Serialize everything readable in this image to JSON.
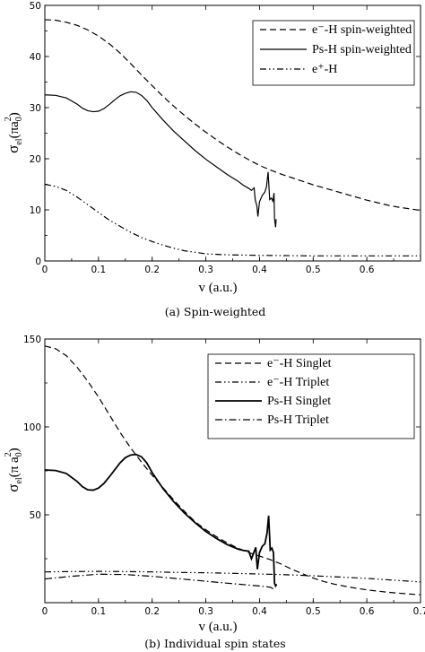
{
  "chart_data": [
    {
      "type": "line",
      "caption": "(a) Spin-weighted",
      "xlabel": "v  (a.u.)",
      "ylabel_main": "σ",
      "ylabel_sub": "el",
      "ylabel_rest": "(πa",
      "ylabel_sub2": "0",
      "ylabel_sup": "2",
      "ylabel_end": ")",
      "xlim": [
        0,
        0.7
      ],
      "ylim": [
        0,
        50
      ],
      "xticks": [
        "0",
        "0.1",
        "0.2",
        "0.3",
        "0.4",
        "0.5",
        "0.6"
      ],
      "yticks": [
        "0",
        "10",
        "20",
        "30",
        "40",
        "50"
      ],
      "legend": "top-right",
      "series": [
        {
          "name": "e⁻-H spin-weighted",
          "style": "dashed",
          "points": [
            [
              0,
              47.2
            ],
            [
              0.02,
              47.1
            ],
            [
              0.04,
              46.7
            ],
            [
              0.06,
              46.1
            ],
            [
              0.08,
              45.2
            ],
            [
              0.1,
              44.0
            ],
            [
              0.12,
              42.5
            ],
            [
              0.14,
              40.7
            ],
            [
              0.16,
              38.6
            ],
            [
              0.18,
              36.4
            ],
            [
              0.2,
              34.3
            ],
            [
              0.22,
              32.2
            ],
            [
              0.24,
              30.3
            ],
            [
              0.26,
              28.5
            ],
            [
              0.28,
              26.8
            ],
            [
              0.3,
              25.2
            ],
            [
              0.32,
              23.7
            ],
            [
              0.34,
              22.3
            ],
            [
              0.36,
              21.0
            ],
            [
              0.38,
              19.8
            ],
            [
              0.4,
              18.7
            ],
            [
              0.42,
              17.8
            ],
            [
              0.44,
              17.0
            ],
            [
              0.46,
              16.3
            ],
            [
              0.48,
              15.6
            ],
            [
              0.5,
              14.9
            ],
            [
              0.52,
              14.3
            ],
            [
              0.54,
              13.7
            ],
            [
              0.56,
              13.1
            ],
            [
              0.58,
              12.5
            ],
            [
              0.6,
              11.9
            ],
            [
              0.62,
              11.4
            ],
            [
              0.64,
              10.9
            ],
            [
              0.66,
              10.5
            ],
            [
              0.68,
              10.2
            ],
            [
              0.7,
              9.9
            ]
          ]
        },
        {
          "name": "Ps-H spin-weighted",
          "style": "solid",
          "points": [
            [
              0,
              32.5
            ],
            [
              0.02,
              32.4
            ],
            [
              0.04,
              31.9
            ],
            [
              0.06,
              30.7
            ],
            [
              0.07,
              29.9
            ],
            [
              0.08,
              29.4
            ],
            [
              0.09,
              29.2
            ],
            [
              0.1,
              29.3
            ],
            [
              0.11,
              29.8
            ],
            [
              0.12,
              30.6
            ],
            [
              0.13,
              31.5
            ],
            [
              0.14,
              32.3
            ],
            [
              0.15,
              32.8
            ],
            [
              0.16,
              33.1
            ],
            [
              0.17,
              33.0
            ],
            [
              0.18,
              32.4
            ],
            [
              0.19,
              31.4
            ],
            [
              0.2,
              30.0
            ],
            [
              0.22,
              27.6
            ],
            [
              0.24,
              25.4
            ],
            [
              0.26,
              23.5
            ],
            [
              0.28,
              21.6
            ],
            [
              0.3,
              19.9
            ],
            [
              0.32,
              18.4
            ],
            [
              0.34,
              16.9
            ],
            [
              0.36,
              15.6
            ],
            [
              0.37,
              14.8
            ],
            [
              0.38,
              14.2
            ],
            [
              0.385,
              13.8
            ],
            [
              0.39,
              14.3
            ],
            [
              0.392,
              12.0
            ],
            [
              0.395,
              10.8
            ],
            [
              0.397,
              8.7
            ],
            [
              0.4,
              11.6
            ],
            [
              0.405,
              12.8
            ],
            [
              0.41,
              13.5
            ],
            [
              0.413,
              14.5
            ],
            [
              0.416,
              17.4
            ],
            [
              0.419,
              12.0
            ],
            [
              0.422,
              12.3
            ],
            [
              0.425,
              11.7
            ],
            [
              0.427,
              13.3
            ],
            [
              0.428,
              8.3
            ],
            [
              0.43,
              6.6
            ],
            [
              0.431,
              8.2
            ]
          ]
        },
        {
          "name": "e⁺-H",
          "style": "dashdotdot",
          "points": [
            [
              0,
              15.0
            ],
            [
              0.02,
              14.6
            ],
            [
              0.04,
              13.8
            ],
            [
              0.06,
              12.5
            ],
            [
              0.08,
              11.0
            ],
            [
              0.1,
              9.5
            ],
            [
              0.12,
              8.0
            ],
            [
              0.14,
              6.8
            ],
            [
              0.16,
              5.6
            ],
            [
              0.18,
              4.6
            ],
            [
              0.2,
              3.8
            ],
            [
              0.22,
              3.1
            ],
            [
              0.24,
              2.5
            ],
            [
              0.26,
              2.0
            ],
            [
              0.28,
              1.7
            ],
            [
              0.3,
              1.4
            ],
            [
              0.34,
              1.2
            ],
            [
              0.4,
              1.1
            ],
            [
              0.5,
              1.0
            ],
            [
              0.6,
              1.0
            ],
            [
              0.7,
              1.0
            ]
          ]
        }
      ]
    },
    {
      "type": "line",
      "caption": "(b) Individual spin states",
      "xlabel": "v  (a.u.)",
      "ylabel_main": "σ",
      "ylabel_sub": "el",
      "ylabel_rest": "(π a",
      "ylabel_sub2": "0",
      "ylabel_sup": "2",
      "ylabel_end": ")",
      "xlim": [
        0,
        0.7
      ],
      "ylim": [
        0,
        150
      ],
      "xticks": [
        "0",
        "0.1",
        "0.2",
        "0.3",
        "0.4",
        "0.5",
        "0.6",
        "0.7"
      ],
      "yticks": [
        "50",
        "100",
        "150"
      ],
      "legend": "top-right",
      "series": [
        {
          "name": "e⁻-H  Singlet",
          "style": "dashed",
          "points": [
            [
              0,
              146
            ],
            [
              0.02,
              144.5
            ],
            [
              0.04,
              140.5
            ],
            [
              0.06,
              134
            ],
            [
              0.08,
              126
            ],
            [
              0.1,
              117
            ],
            [
              0.12,
              107
            ],
            [
              0.14,
              97
            ],
            [
              0.16,
              88
            ],
            [
              0.18,
              80
            ],
            [
              0.2,
              72.5
            ],
            [
              0.22,
              65.5
            ],
            [
              0.24,
              58.5
            ],
            [
              0.26,
              52
            ],
            [
              0.28,
              46
            ],
            [
              0.3,
              41.5
            ],
            [
              0.32,
              37.5
            ],
            [
              0.34,
              34
            ],
            [
              0.36,
              31
            ],
            [
              0.38,
              28.5
            ],
            [
              0.4,
              26.5
            ],
            [
              0.42,
              24.5
            ],
            [
              0.44,
              22
            ],
            [
              0.46,
              19
            ],
            [
              0.48,
              16.5
            ],
            [
              0.5,
              14
            ],
            [
              0.52,
              12
            ],
            [
              0.54,
              10.5
            ],
            [
              0.56,
              9.3
            ],
            [
              0.58,
              8.2
            ],
            [
              0.6,
              7.3
            ],
            [
              0.62,
              6.6
            ],
            [
              0.64,
              5.9
            ],
            [
              0.66,
              5.4
            ],
            [
              0.68,
              4.9
            ],
            [
              0.7,
              4.5
            ]
          ]
        },
        {
          "name": "e⁻-H  Triplet",
          "style": "dashdotdot",
          "points": [
            [
              0,
              17.5
            ],
            [
              0.05,
              17.7
            ],
            [
              0.1,
              17.8
            ],
            [
              0.15,
              17.7
            ],
            [
              0.2,
              17.5
            ],
            [
              0.25,
              17.2
            ],
            [
              0.3,
              17.0
            ],
            [
              0.35,
              16.7
            ],
            [
              0.4,
              16.3
            ],
            [
              0.45,
              15.9
            ],
            [
              0.5,
              15.3
            ],
            [
              0.55,
              14.6
            ],
            [
              0.6,
              13.8
            ],
            [
              0.65,
              12.8
            ],
            [
              0.7,
              11.8
            ]
          ]
        },
        {
          "name": "Ps-H Singlet",
          "style": "solid-thick",
          "points": [
            [
              0,
              75.5
            ],
            [
              0.02,
              75.2
            ],
            [
              0.04,
              73.5
            ],
            [
              0.06,
              69
            ],
            [
              0.07,
              66
            ],
            [
              0.08,
              64.2
            ],
            [
              0.09,
              64
            ],
            [
              0.1,
              65.2
            ],
            [
              0.11,
              67.8
            ],
            [
              0.12,
              71.5
            ],
            [
              0.13,
              75.5
            ],
            [
              0.14,
              79.5
            ],
            [
              0.15,
              82.5
            ],
            [
              0.16,
              84
            ],
            [
              0.17,
              84.3
            ],
            [
              0.18,
              83
            ],
            [
              0.19,
              79.5
            ],
            [
              0.2,
              74
            ],
            [
              0.22,
              65
            ],
            [
              0.24,
              57.5
            ],
            [
              0.26,
              51
            ],
            [
              0.28,
              45.5
            ],
            [
              0.3,
              40.5
            ],
            [
              0.32,
              36.5
            ],
            [
              0.34,
              33
            ],
            [
              0.36,
              30.5
            ],
            [
              0.37,
              29.7
            ],
            [
              0.38,
              29.3
            ],
            [
              0.385,
              25
            ],
            [
              0.39,
              29
            ],
            [
              0.393,
              31.5
            ],
            [
              0.396,
              19
            ],
            [
              0.4,
              28.5
            ],
            [
              0.405,
              32
            ],
            [
              0.41,
              33.5
            ],
            [
              0.414,
              39.5
            ],
            [
              0.417,
              49.5
            ],
            [
              0.42,
              30
            ],
            [
              0.423,
              31
            ],
            [
              0.426,
              28.5
            ],
            [
              0.428,
              11
            ],
            [
              0.43,
              9.5
            ],
            [
              0.432,
              10.5
            ]
          ]
        },
        {
          "name": "Ps-H Triplet",
          "style": "dashdot",
          "points": [
            [
              0,
              13.5
            ],
            [
              0.05,
              15
            ],
            [
              0.1,
              16.2
            ],
            [
              0.15,
              16
            ],
            [
              0.2,
              15
            ],
            [
              0.25,
              13.6
            ],
            [
              0.3,
              12.2
            ],
            [
              0.35,
              10.8
            ],
            [
              0.4,
              9.5
            ],
            [
              0.42,
              8.8
            ],
            [
              0.43,
              7.2
            ]
          ]
        }
      ]
    }
  ]
}
